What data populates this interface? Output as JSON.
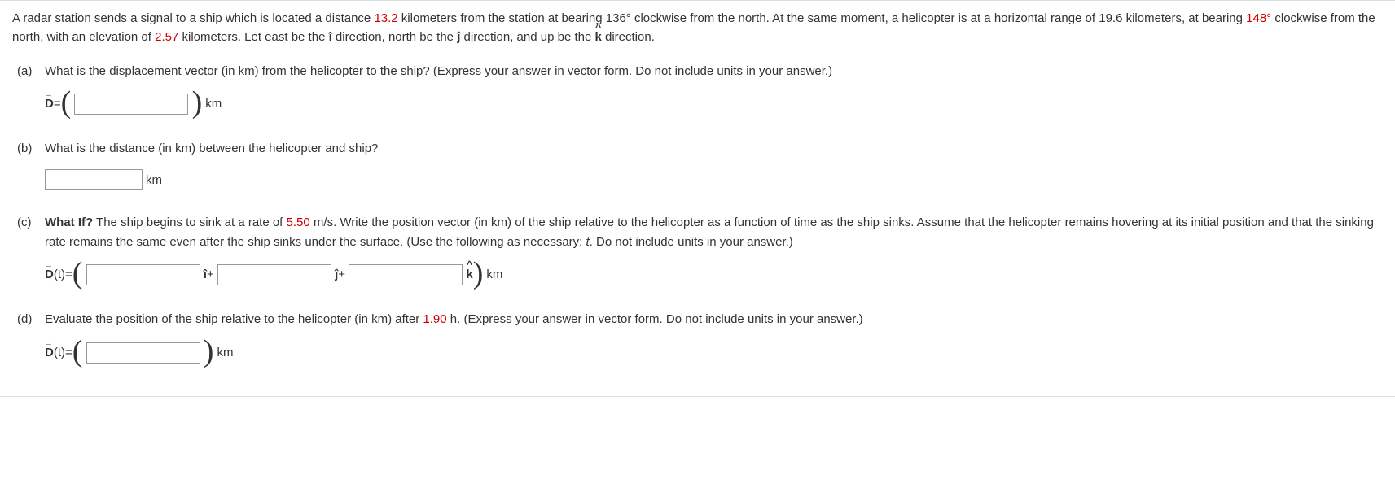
{
  "intro": {
    "seg1": "A radar station sends a signal to a ship which is located a distance ",
    "val1": "13.2",
    "seg2": " kilometers from the station at bearing 136° clockwise from the north. At the same moment, a helicopter is at a horizontal range of 19.6 kilometers, at bearing ",
    "val2": "148°",
    "seg3": " clockwise from the north, with an elevation of ",
    "val3": "2.57",
    "seg4": " kilometers. Let east be the ",
    "seg5": " direction, north be the ",
    "seg6": " direction, and up be the ",
    "seg7": " direction."
  },
  "a": {
    "label": "(a)",
    "text": "What is the displacement vector (in km) from the helicopter to the ship? (Express your answer in vector form. Do not include units in your answer.)",
    "lhs": "D",
    "eq": " = ",
    "unit": "km"
  },
  "b": {
    "label": "(b)",
    "text": "What is the distance (in km) between the helicopter and ship?",
    "unit": "km"
  },
  "c": {
    "label": "(c)",
    "whatif": "What If?",
    "seg1": " The ship begins to sink at a rate of ",
    "rate": "5.50",
    "seg2": " m/s. Write the position vector (in km) of the ship relative to the helicopter as a function of time as the ship sinks. Assume that the helicopter remains hovering at its initial position and that the sinking rate remains the same even after the ship sinks under the surface. (Use the following as necessary: ",
    "var": "t",
    "seg3": ". Do not include units in your answer.)",
    "lhs": "D",
    "arg": "(t)",
    "eq": " = ",
    "plus": " + ",
    "unit": "km"
  },
  "d": {
    "label": "(d)",
    "seg1": "Evaluate the position of the ship relative to the helicopter (in km) after ",
    "time": "1.90",
    "seg2": " h. (Express your answer in vector form. Do not include units in your answer.)",
    "lhs": "D",
    "arg": "(t)",
    "eq": " = ",
    "unit": "km"
  },
  "hats": {
    "i": "î",
    "j": "ĵ",
    "k": "k",
    "caret": "^"
  }
}
